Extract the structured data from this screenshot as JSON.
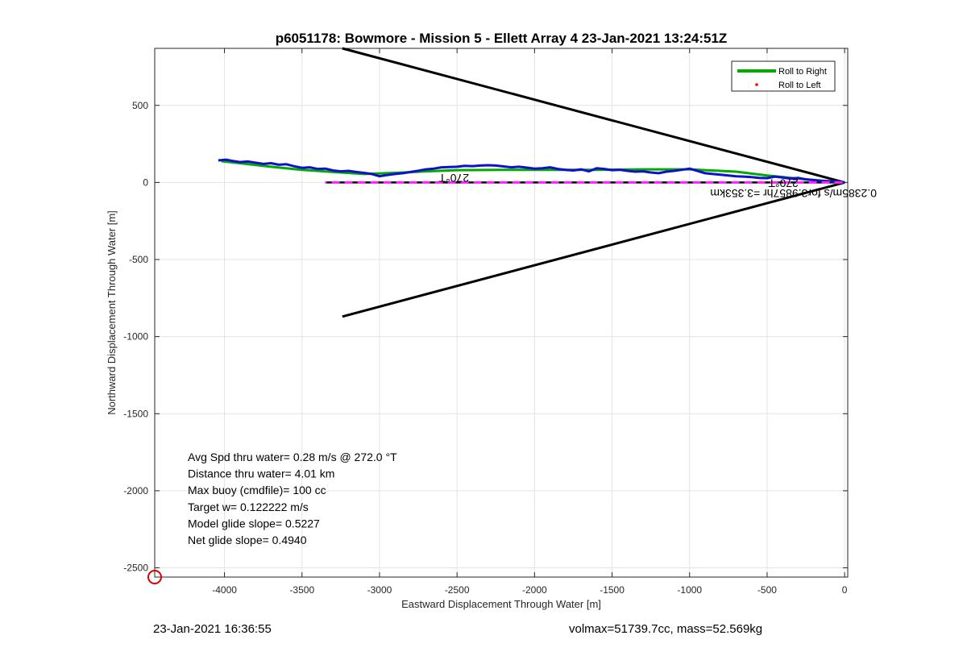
{
  "chart_data": {
    "type": "line",
    "title": "p6051178: Bowmore - Mission 5 - Ellett Array 4 23-Jan-2021 13:24:51Z",
    "xlabel": "Eastward Displacement Through Water [m]",
    "ylabel": "Northward Displacement Through Water [m]",
    "xlim": [
      -4450,
      20
    ],
    "ylim": [
      -2560,
      870
    ],
    "xticks": [
      -4000,
      -3500,
      -3000,
      -2500,
      -2000,
      -1500,
      -1000,
      -500,
      0
    ],
    "xtick_labels": [
      "-4000",
      "-3500",
      "-3000",
      "-2500",
      "-2000",
      "-1500",
      "-1000",
      "-500",
      "0"
    ],
    "yticks": [
      -2500,
      -2000,
      -1500,
      -1000,
      -500,
      0,
      500
    ],
    "ytick_labels": [
      "-2500",
      "-2000",
      "-1500",
      "-1000",
      "-500",
      "0",
      "500"
    ],
    "grid": true,
    "legend_position": "top-right",
    "legend": [
      {
        "label": "Roll to Right",
        "color": "#00aa00",
        "style": "line"
      },
      {
        "label": "Roll to Left",
        "color": "#ff0000",
        "style": "dot"
      }
    ],
    "series": [
      {
        "name": "Roll to Right",
        "color": "#00aa00",
        "x": [
          -4020,
          -3900,
          -3700,
          -3500,
          -3300,
          -3100,
          -2900,
          -2700,
          -2500,
          -2200,
          -1900,
          -1600,
          -1300,
          -1000,
          -700,
          -500,
          -300,
          -150,
          0
        ],
        "y": [
          138,
          125,
          102,
          82,
          68,
          55,
          62,
          72,
          80,
          82,
          82,
          82,
          85,
          85,
          70,
          45,
          25,
          12,
          0
        ]
      },
      {
        "name": "",
        "color": "#1010cc",
        "x": [
          -4040,
          -3990,
          -3950,
          -3900,
          -3850,
          -3800,
          -3750,
          -3700,
          -3650,
          -3600,
          -3550,
          -3500,
          -3450,
          -3400,
          -3350,
          -3300,
          -3250,
          -3200,
          -3150,
          -3100,
          -3050,
          -3000,
          -2950,
          -2900,
          -2850,
          -2800,
          -2750,
          -2700,
          -2650,
          -2600,
          -2550,
          -2500,
          -2450,
          -2400,
          -2350,
          -2300,
          -2250,
          -2200,
          -2150,
          -2100,
          -2050,
          -2000,
          -1950,
          -1900,
          -1850,
          -1800,
          -1750,
          -1700,
          -1650,
          -1600,
          -1550,
          -1500,
          -1450,
          -1400,
          -1350,
          -1300,
          -1250,
          -1200,
          -1150,
          -1100,
          -1050,
          -1000,
          -950,
          -900,
          -850,
          -800,
          -750,
          -700,
          -650,
          -600,
          -550,
          -500,
          -450,
          -400,
          -350,
          -300,
          -250,
          -200,
          -150,
          -100,
          -50,
          0
        ],
        "y": [
          143,
          148,
          140,
          132,
          136,
          128,
          120,
          125,
          115,
          118,
          105,
          95,
          98,
          88,
          90,
          78,
          72,
          75,
          68,
          62,
          55,
          40,
          48,
          55,
          60,
          68,
          76,
          85,
          90,
          98,
          100,
          102,
          108,
          106,
          110,
          112,
          110,
          104,
          98,
          102,
          96,
          90,
          92,
          98,
          88,
          82,
          78,
          85,
          72,
          92,
          88,
          80,
          82,
          75,
          70,
          72,
          65,
          60,
          70,
          75,
          82,
          90,
          75,
          60,
          55,
          50,
          45,
          40,
          38,
          35,
          30,
          28,
          38,
          32,
          25,
          30,
          20,
          15,
          10,
          8,
          4,
          0
        ]
      },
      {
        "name": "",
        "color": "#ff22ff",
        "x": [
          -3350,
          0
        ],
        "y": [
          0,
          0
        ]
      }
    ],
    "reference_lines": [
      {
        "color": "#000000",
        "x": [
          -3240,
          0
        ],
        "y": [
          870,
          0
        ]
      },
      {
        "color": "#000000",
        "x": [
          -3240,
          0
        ],
        "y": [
          -870,
          0
        ]
      },
      {
        "color": "#000000",
        "style": "dashed",
        "x": [
          -3350,
          0
        ],
        "y": [
          0,
          0
        ]
      }
    ],
    "annotations": {
      "rotated": [
        {
          "text": "270°T",
          "x": -2520,
          "y": 55
        },
        {
          "text": "270°T",
          "x": -395,
          "y": 20
        },
        {
          "text": "0.2385m/s for3.9857hr =3.353km",
          "x": -330,
          "y": -45
        }
      ],
      "stats": [
        "Avg Spd thru water=  0.28 m/s @ 272.0 °T",
        "Distance thru water=  4.01 km",
        "Max buoy (cmdfile)= 100 cc",
        "Target w= 0.122222 m/s",
        "Model glide slope= 0.5227",
        "Net glide slope= 0.4940"
      ],
      "start_marker": {
        "x": -4450,
        "y": -2560,
        "color": "#dd0000"
      }
    }
  },
  "footer": {
    "timestamp": "23-Jan-2021 16:36:55",
    "vehicle_info": "volmax=51739.7cc, mass=52.569kg"
  }
}
